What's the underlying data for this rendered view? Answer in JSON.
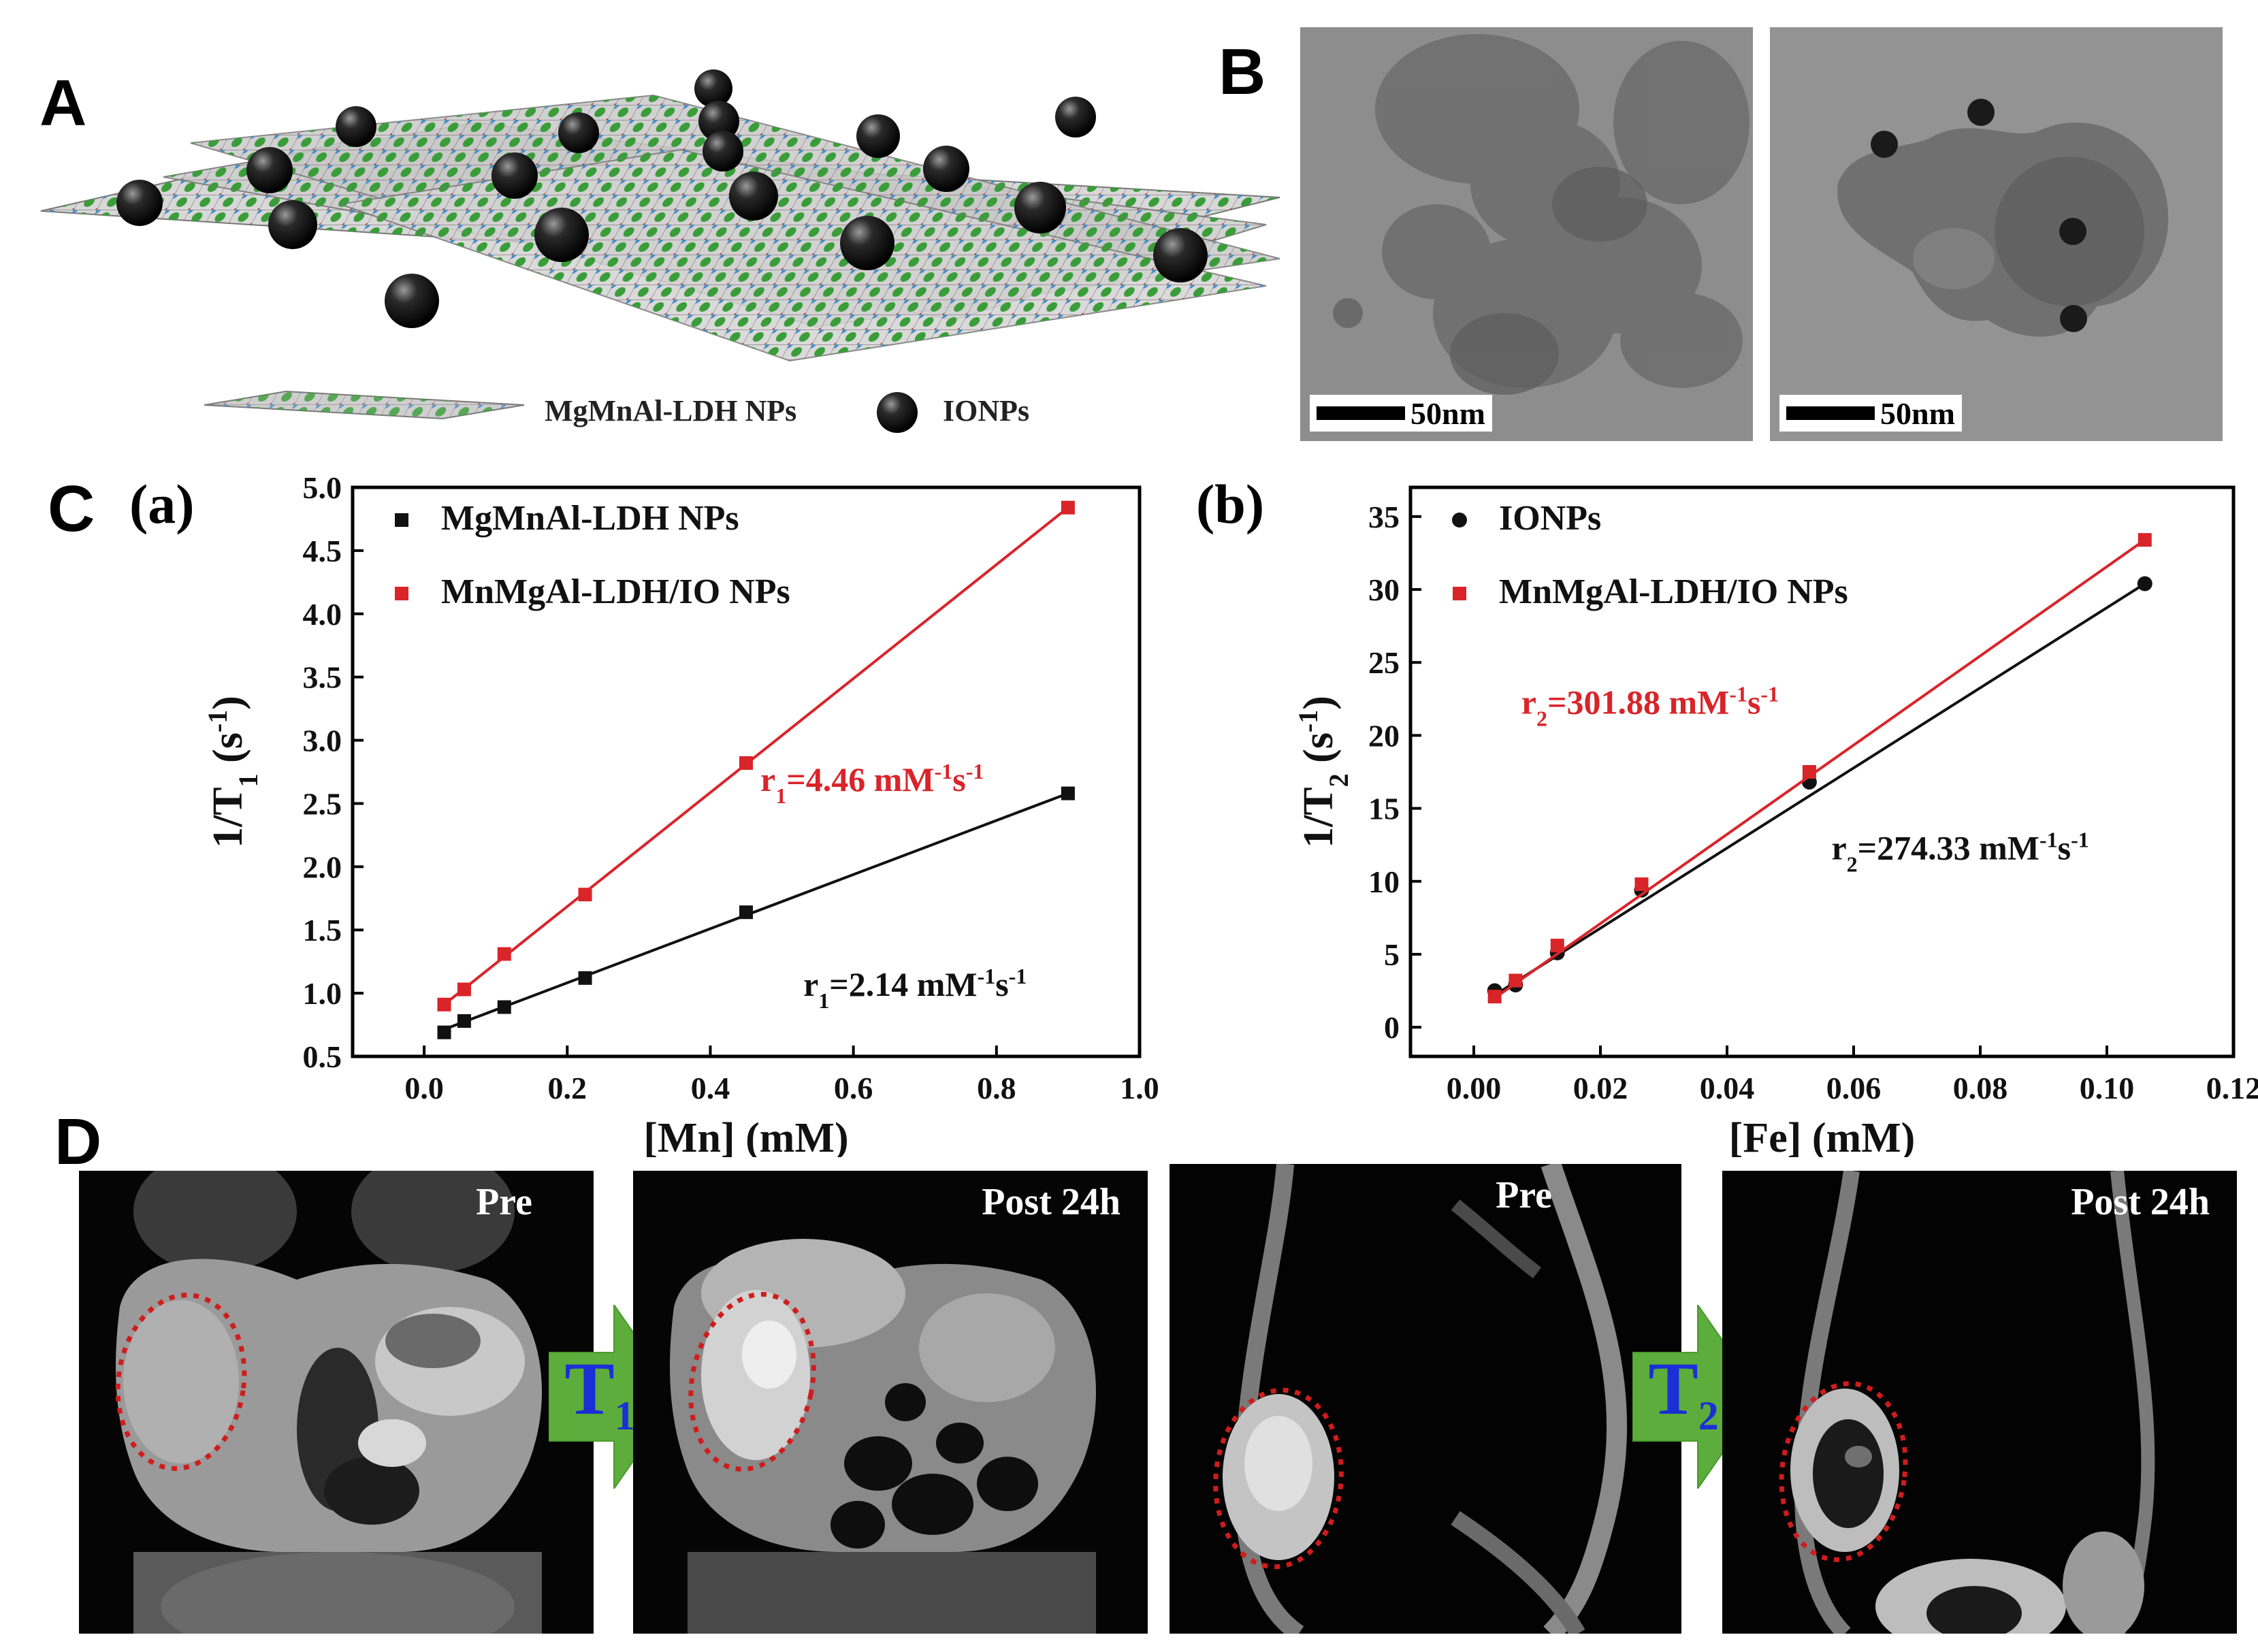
{
  "panels": {
    "A": {
      "label": "A",
      "legend_ldh": "MgMnAl-LDH NPs",
      "legend_io": "IONPs"
    },
    "B": {
      "label": "B",
      "scale_left": "50nm",
      "scale_right": "50nm"
    },
    "C": {
      "label": "C"
    },
    "D": {
      "label": "D",
      "images": [
        {
          "label": "Pre"
        },
        {
          "label": "Post 24h"
        },
        {
          "label": "Pre"
        },
        {
          "label": "Post 24h"
        }
      ],
      "arrow1": {
        "symbol": "T",
        "sub": "1"
      },
      "arrow2": {
        "symbol": "T",
        "sub": "2"
      },
      "arrow_color": "#5cad3c",
      "roi_color": "#d01c1c"
    }
  },
  "chart_data": [
    {
      "panel": "(a)",
      "type": "scatter",
      "xlabel": "[Mn] (mM)",
      "ylabel_main": "1/T",
      "ylabel_sub": "1",
      "ylabel_unit": " (s",
      "ylabel_sup": "-1",
      "ylabel_end": ")",
      "xlim": [
        -0.1,
        1.0
      ],
      "ylim": [
        0.5,
        5.0
      ],
      "xticks": [
        "0.0",
        "0.2",
        "0.4",
        "0.6",
        "0.8",
        "1.0"
      ],
      "yticks": [
        "0.5",
        "1.0",
        "1.5",
        "2.0",
        "2.5",
        "3.0",
        "3.5",
        "4.0",
        "4.5",
        "5.0"
      ],
      "legend_position": "top-left",
      "series": [
        {
          "name": "MgMnAl-LDH NPs",
          "color": "#111111",
          "marker": "square",
          "x": [
            0.028,
            0.056,
            0.112,
            0.225,
            0.45,
            0.9
          ],
          "y": [
            0.69,
            0.78,
            0.89,
            1.12,
            1.64,
            2.58
          ],
          "fit": [
            [
              0.028,
              0.714
            ],
            [
              0.9,
              2.58
            ]
          ],
          "annotation": {
            "base": "r",
            "sub": "1",
            "main": "=2.14 mM",
            "sup1": "-1",
            "mid": "s",
            "sup2": "-1",
            "x": 0.53,
            "y": 0.98
          }
        },
        {
          "name": "MnMgAl-LDH/IO NPs",
          "color": "#d9242a",
          "marker": "square",
          "x": [
            0.028,
            0.056,
            0.112,
            0.225,
            0.45,
            0.9
          ],
          "y": [
            0.91,
            1.03,
            1.31,
            1.78,
            2.82,
            4.84
          ],
          "fit": [
            [
              0.028,
              0.91
            ],
            [
              0.9,
              4.84
            ]
          ],
          "annotation": {
            "base": "r",
            "sub": "1",
            "main": "=4.46 mM",
            "sup1": "-1",
            "mid": "s",
            "sup2": "-1",
            "x": 0.47,
            "y": 2.6
          }
        }
      ]
    },
    {
      "panel": "(b)",
      "type": "scatter",
      "xlabel": "[Fe] (mM)",
      "ylabel_main": "1/T",
      "ylabel_sub": "2",
      "ylabel_unit": " (s",
      "ylabel_sup": "-1",
      "ylabel_end": ")",
      "xlim": [
        -0.01,
        0.12
      ],
      "ylim": [
        -2,
        37
      ],
      "xticks": [
        "0.00",
        "0.02",
        "0.04",
        "0.06",
        "0.08",
        "0.10",
        "0.12"
      ],
      "yticks": [
        "0",
        "5",
        "10",
        "15",
        "20",
        "25",
        "30",
        "35"
      ],
      "legend_position": "top-left",
      "series": [
        {
          "name": "IONPs",
          "color": "#111111",
          "marker": "circle",
          "x": [
            0.0033,
            0.0066,
            0.0132,
            0.0265,
            0.053,
            0.106
          ],
          "y": [
            2.5,
            2.9,
            5.1,
            9.4,
            16.8,
            30.4
          ],
          "fit": [
            [
              0.0033,
              2.2
            ],
            [
              0.106,
              30.4
            ]
          ],
          "annotation": {
            "base": "r",
            "sub": "2",
            "main": "=274.33 mM",
            "sup1": "-1",
            "mid": "s",
            "sup2": "-1",
            "x": 0.0565,
            "y": 11.5
          }
        },
        {
          "name": "MnMgAl-LDH/IO NPs",
          "color": "#d9242a",
          "marker": "square",
          "x": [
            0.0033,
            0.0066,
            0.0132,
            0.0265,
            0.053,
            0.106
          ],
          "y": [
            2.1,
            3.2,
            5.6,
            9.8,
            17.5,
            33.4
          ],
          "fit": [
            [
              0.0033,
              2.0
            ],
            [
              0.106,
              33.4
            ]
          ],
          "annotation": {
            "base": "r",
            "sub": "2",
            "main": "=301.88 mM",
            "sup1": "-1",
            "mid": "s",
            "sup2": "-1",
            "x": 0.0075,
            "y": 21.5
          }
        }
      ]
    }
  ]
}
